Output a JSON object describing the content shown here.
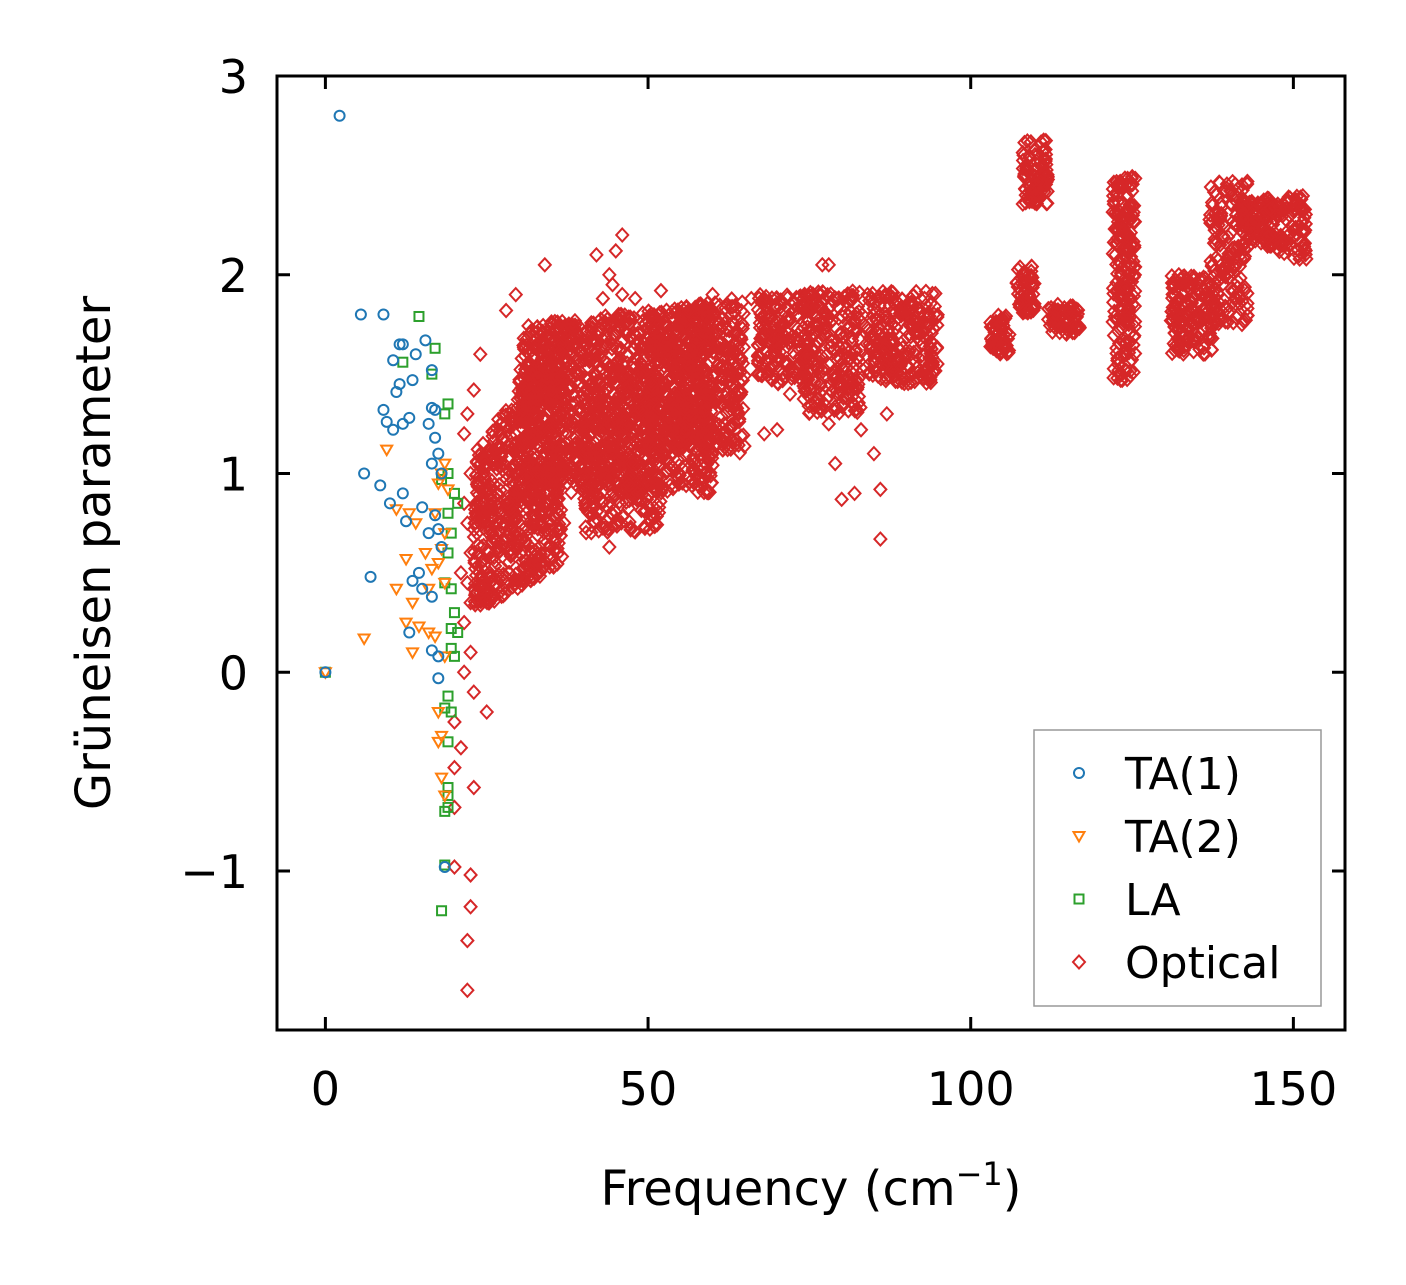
{
  "chart_data": {
    "type": "scatter",
    "title": "",
    "xlabel": "Frequency (cm",
    "xlabel_superscript": "−1",
    "xlabel_suffix": ")",
    "ylabel": "Grüneisen parameter",
    "xlim": [
      -7.5,
      158
    ],
    "ylim": [
      -1.8,
      3.0
    ],
    "x_ticks": [
      0,
      50,
      100,
      150
    ],
    "x_tick_labels": [
      "0",
      "50",
      "100",
      "150"
    ],
    "y_ticks": [
      -1,
      0,
      1,
      2,
      3
    ],
    "y_tick_labels": [
      "−1",
      "0",
      "1",
      "2",
      "3"
    ],
    "grid": false,
    "legend_position": "lower-right",
    "series": [
      {
        "name": "TA(1)",
        "marker": "circle",
        "color": "#1f77b4",
        "points": [
          [
            0,
            0
          ],
          [
            2.2,
            2.8
          ],
          [
            5.5,
            1.8
          ],
          [
            9,
            1.8
          ],
          [
            11.5,
            1.65
          ],
          [
            12,
            1.65
          ],
          [
            10.5,
            1.57
          ],
          [
            14,
            1.6
          ],
          [
            15.5,
            1.67
          ],
          [
            16.5,
            1.52
          ],
          [
            11.5,
            1.45
          ],
          [
            11,
            1.41
          ],
          [
            13.5,
            1.47
          ],
          [
            9,
            1.32
          ],
          [
            9.5,
            1.26
          ],
          [
            10.5,
            1.22
          ],
          [
            12,
            1.25
          ],
          [
            13,
            1.28
          ],
          [
            16,
            1.25
          ],
          [
            16.5,
            1.33
          ],
          [
            17,
            1.32
          ],
          [
            17.5,
            1.1
          ],
          [
            16.5,
            1.05
          ],
          [
            18,
            1.0
          ],
          [
            6,
            1.0
          ],
          [
            8.5,
            0.94
          ],
          [
            12,
            0.9
          ],
          [
            10,
            0.85
          ],
          [
            15,
            0.83
          ],
          [
            17,
            0.79
          ],
          [
            12.5,
            0.76
          ],
          [
            17.5,
            0.72
          ],
          [
            16,
            0.7
          ],
          [
            18,
            0.63
          ],
          [
            7,
            0.48
          ],
          [
            13.5,
            0.46
          ],
          [
            15,
            0.42
          ],
          [
            16.5,
            0.38
          ],
          [
            13,
            0.2
          ],
          [
            16.5,
            0.11
          ],
          [
            17.5,
            0.08
          ],
          [
            17.5,
            -0.03
          ],
          [
            18.5,
            -0.98
          ],
          [
            17,
            1.18
          ],
          [
            14.5,
            0.5
          ]
        ]
      },
      {
        "name": "TA(2)",
        "marker": "triangle-down",
        "color": "#ff7f0e",
        "points": [
          [
            0,
            0
          ],
          [
            9.5,
            1.12
          ],
          [
            11,
            0.82
          ],
          [
            13,
            0.8
          ],
          [
            14,
            0.75
          ],
          [
            12.5,
            0.57
          ],
          [
            15.5,
            0.6
          ],
          [
            16.5,
            0.52
          ],
          [
            17.5,
            0.55
          ],
          [
            18,
            0.62
          ],
          [
            16,
            0.42
          ],
          [
            13.5,
            0.35
          ],
          [
            11,
            0.42
          ],
          [
            12.5,
            0.25
          ],
          [
            14.5,
            0.23
          ],
          [
            16,
            0.2
          ],
          [
            13.5,
            0.1
          ],
          [
            6,
            0.17
          ],
          [
            17,
            0.18
          ],
          [
            18.5,
            0.08
          ],
          [
            17.5,
            -0.2
          ],
          [
            18,
            -0.32
          ],
          [
            17.5,
            -0.35
          ],
          [
            18,
            -0.53
          ],
          [
            18.5,
            -0.62
          ],
          [
            18,
            1.0
          ],
          [
            18.5,
            1.05
          ],
          [
            17.5,
            0.95
          ],
          [
            19,
            0.92
          ],
          [
            17,
            0.8
          ],
          [
            18.5,
            0.7
          ],
          [
            18.5,
            0.45
          ]
        ]
      },
      {
        "name": "LA",
        "marker": "square",
        "color": "#2ca02c",
        "points": [
          [
            0,
            0
          ],
          [
            14.5,
            1.79
          ],
          [
            17,
            1.63
          ],
          [
            12,
            1.56
          ],
          [
            16.5,
            1.5
          ],
          [
            19,
            1.35
          ],
          [
            18.5,
            1.3
          ],
          [
            19,
            1.0
          ],
          [
            18,
            0.97
          ],
          [
            20,
            0.9
          ],
          [
            20.5,
            0.85
          ],
          [
            19,
            0.8
          ],
          [
            19.5,
            0.7
          ],
          [
            19,
            0.6
          ],
          [
            18.5,
            0.45
          ],
          [
            19.5,
            0.42
          ],
          [
            20,
            0.3
          ],
          [
            19.5,
            0.22
          ],
          [
            20.5,
            0.2
          ],
          [
            19.5,
            0.12
          ],
          [
            20,
            0.08
          ],
          [
            19,
            -0.12
          ],
          [
            18.5,
            -0.18
          ],
          [
            19.5,
            -0.2
          ],
          [
            19,
            -0.35
          ],
          [
            19,
            -0.58
          ],
          [
            19,
            -0.62
          ],
          [
            19,
            -0.68
          ],
          [
            18.5,
            -0.7
          ],
          [
            18,
            -1.2
          ],
          [
            18.5,
            -0.97
          ]
        ]
      },
      {
        "name": "Optical",
        "marker": "diamond",
        "color": "#d62728",
        "points": [
          [
            34,
            2.05
          ],
          [
            42,
            2.1
          ],
          [
            44,
            2.0
          ],
          [
            46,
            2.2
          ],
          [
            45,
            2.12
          ],
          [
            44.5,
            1.95
          ],
          [
            43,
            1.88
          ],
          [
            46,
            1.9
          ],
          [
            48,
            1.88
          ],
          [
            52,
            1.92
          ],
          [
            60,
            1.9
          ],
          [
            66,
            1.88
          ],
          [
            77,
            2.05
          ],
          [
            78,
            2.05
          ],
          [
            84,
            1.9
          ],
          [
            28,
            1.82
          ],
          [
            29.5,
            1.9
          ],
          [
            24,
            1.6
          ],
          [
            23,
            1.42
          ],
          [
            21.5,
            1.2
          ],
          [
            22,
            1.3
          ],
          [
            22.5,
            1.0
          ],
          [
            21.5,
            0.85
          ],
          [
            22,
            0.75
          ],
          [
            22.5,
            0.6
          ],
          [
            21,
            0.5
          ],
          [
            22,
            0.45
          ],
          [
            22.5,
            0.35
          ],
          [
            21.5,
            0.25
          ],
          [
            22.5,
            0.1
          ],
          [
            21.5,
            0.0
          ],
          [
            23,
            -0.1
          ],
          [
            25,
            -0.2
          ],
          [
            20,
            -0.25
          ],
          [
            21,
            -0.38
          ],
          [
            20,
            -0.48
          ],
          [
            23,
            -0.58
          ],
          [
            20,
            -0.68
          ],
          [
            20,
            -0.98
          ],
          [
            22.5,
            -1.02
          ],
          [
            22.5,
            -1.18
          ],
          [
            22,
            -1.35
          ],
          [
            22,
            -1.6
          ],
          [
            24,
            0.4
          ],
          [
            27,
            0.4
          ],
          [
            31,
            0.46
          ],
          [
            29,
            0.6
          ],
          [
            36.5,
            0.72
          ],
          [
            44,
            0.63
          ],
          [
            51,
            0.8
          ],
          [
            86,
            0.67
          ],
          [
            67,
            1.5
          ],
          [
            70,
            1.22
          ],
          [
            72,
            1.4
          ],
          [
            68,
            1.2
          ],
          [
            80,
            0.87
          ],
          [
            82,
            0.9
          ],
          [
            86,
            0.92
          ],
          [
            87,
            1.3
          ],
          [
            85,
            1.1
          ],
          [
            83,
            1.22
          ],
          [
            78,
            1.25
          ],
          [
            79,
            1.05
          ],
          [
            110,
            2.4
          ],
          [
            123,
            2.3
          ],
          [
            124.5,
            1.75
          ],
          [
            139,
            1.95
          ],
          [
            133,
            1.62
          ],
          [
            148,
            2.15
          ],
          [
            152,
            2.08
          ]
        ],
        "clusters": [
          {
            "x": [
              23,
              37
            ],
            "y": [
              0.55,
              1.75
            ],
            "y_at_xmin": [
              0.3,
              1.1
            ],
            "n": 700
          },
          {
            "x": [
              30,
              60
            ],
            "y": [
              0.9,
              1.85
            ],
            "y_at_xmin": [
              0.9,
              1.75
            ],
            "n": 1200
          },
          {
            "x": [
              40,
              52
            ],
            "y": [
              0.7,
              1.5
            ],
            "y_at_xmin": [
              0.7,
              1.5
            ],
            "n": 300
          },
          {
            "x": [
              50,
              65
            ],
            "y": [
              1.1,
              1.9
            ],
            "y_at_xmin": [
              1.1,
              1.8
            ],
            "n": 500
          },
          {
            "x": [
              67,
              75
            ],
            "y": [
              1.45,
              1.9
            ],
            "y_at_xmin": [
              1.45,
              1.9
            ],
            "n": 180
          },
          {
            "x": [
              74,
              83
            ],
            "y": [
              1.3,
              1.92
            ],
            "y_at_xmin": [
              1.3,
              1.92
            ],
            "n": 240
          },
          {
            "x": [
              84,
              95
            ],
            "y": [
              1.45,
              1.92
            ],
            "y_at_xmin": [
              1.45,
              1.92
            ],
            "n": 260
          },
          {
            "x": [
              103,
              106
            ],
            "y": [
              1.6,
              1.8
            ],
            "y_at_xmin": [
              1.6,
              1.8
            ],
            "n": 60
          },
          {
            "x": [
              107,
              110
            ],
            "y": [
              1.8,
              2.05
            ],
            "y_at_xmin": [
              1.8,
              2.05
            ],
            "n": 60
          },
          {
            "x": [
              108,
              112
            ],
            "y": [
              2.35,
              2.68
            ],
            "y_at_xmin": [
              2.35,
              2.68
            ],
            "n": 90
          },
          {
            "x": [
              112,
              117
            ],
            "y": [
              1.7,
              1.85
            ],
            "y_at_xmin": [
              1.7,
              1.85
            ],
            "n": 60
          },
          {
            "x": [
              122,
              125.5
            ],
            "y": [
              1.45,
              2.5
            ],
            "y_at_xmin": [
              1.45,
              2.5
            ],
            "n": 220
          },
          {
            "x": [
              131,
              138
            ],
            "y": [
              1.6,
              2.0
            ],
            "y_at_xmin": [
              1.6,
              2.0
            ],
            "n": 160
          },
          {
            "x": [
              137,
              143
            ],
            "y": [
              1.75,
              2.47
            ],
            "y_at_xmin": [
              1.75,
              2.47
            ],
            "n": 160
          },
          {
            "x": [
              142,
              152
            ],
            "y": [
              2.05,
              2.4
            ],
            "y_at_xmin": [
              2.2,
              2.38
            ],
            "n": 200
          }
        ]
      }
    ]
  },
  "colors": {
    "ta1": "#1f77b4",
    "ta2": "#ff7f0e",
    "la": "#2ca02c",
    "optical": "#d62728",
    "axes": "#000000",
    "legend_border": "#999999"
  }
}
